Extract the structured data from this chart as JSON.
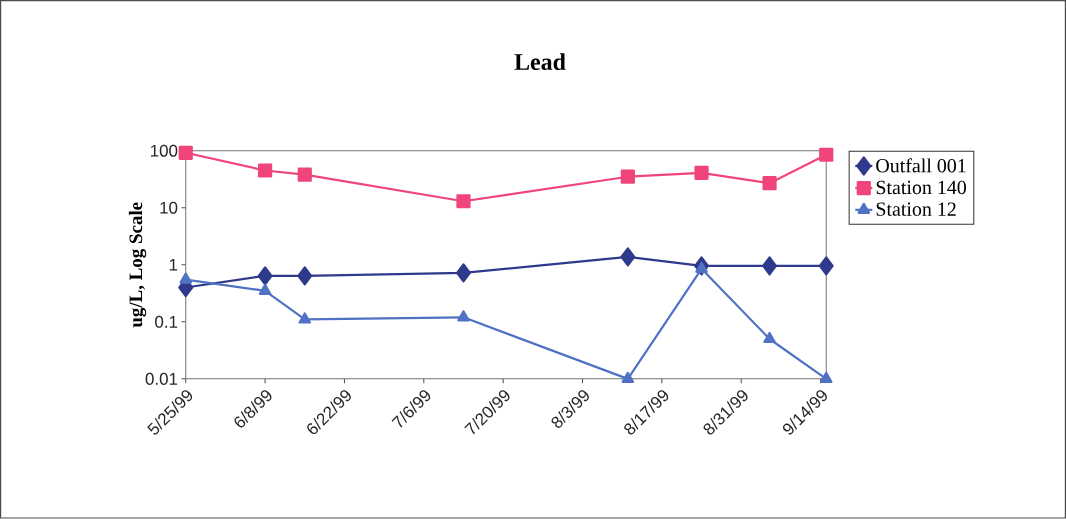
{
  "chart_data": {
    "type": "line",
    "title": "Lead",
    "ylabel": "ug/L, Log Scale",
    "x": [
      "1999-05-25",
      "1999-06-08",
      "1999-06-15",
      "1999-07-13",
      "1999-08-11",
      "1999-08-24",
      "1999-09-05",
      "1999-09-15"
    ],
    "series": [
      {
        "name": "Outfall 001",
        "color": "#2f3a8c",
        "marker": "diamond",
        "values": [
          0.4,
          0.64,
          0.64,
          0.72,
          1.38,
          0.96,
          0.96,
          0.96
        ]
      },
      {
        "name": "Station 140",
        "color": "#f0457a",
        "marker": "square",
        "values": [
          92,
          45,
          38,
          13,
          35,
          41,
          27,
          85
        ]
      },
      {
        "name": "Station 12",
        "color": "#4f72c4",
        "marker": "triangle",
        "values": [
          0.55,
          0.35,
          0.11,
          0.12,
          0.01,
          0.85,
          0.05,
          0.01
        ]
      }
    ],
    "log": "y",
    "grid": false,
    "legend": "right",
    "line_style": "solid",
    "xlim": [
      "1999-05-25",
      "1999-09-15"
    ],
    "xticks": [
      {
        "value": "1999-05-25",
        "label": "5/25/99"
      },
      {
        "value": "1999-06-08",
        "label": "6/8/99"
      },
      {
        "value": "1999-06-22",
        "label": "6/22/99"
      },
      {
        "value": "1999-07-06",
        "label": "7/6/99"
      },
      {
        "value": "1999-07-20",
        "label": "7/20/99"
      },
      {
        "value": "1999-08-03",
        "label": "8/3/99"
      },
      {
        "value": "1999-08-17",
        "label": "8/17/99"
      },
      {
        "value": "1999-08-31",
        "label": "8/31/99"
      },
      {
        "value": "1999-09-14",
        "label": "9/14/99"
      }
    ],
    "ylim": [
      0.01,
      100
    ],
    "yticks": [
      0.01,
      0.1,
      1,
      10,
      100
    ]
  }
}
